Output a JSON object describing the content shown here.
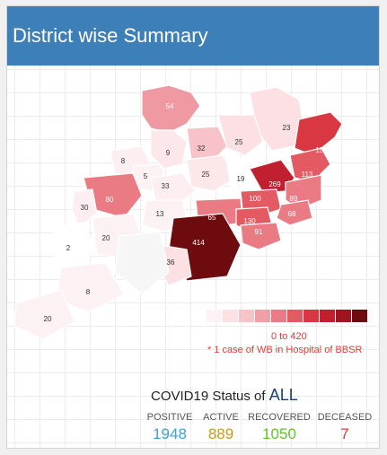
{
  "header": {
    "title": "District wise Summary"
  },
  "map": {
    "district_counts": [
      "54",
      "23",
      "152",
      "9",
      "32",
      "25",
      "8",
      "113",
      "5",
      "25",
      "19",
      "269",
      "33",
      "100",
      "89",
      "80",
      "30",
      "13",
      "65",
      "68",
      "130",
      "91",
      "414",
      "20",
      "36",
      "2",
      "8",
      "20"
    ]
  },
  "legend": {
    "colors": [
      "#fdf2f3",
      "#fbe1e4",
      "#f7c2c8",
      "#f19ea6",
      "#ea7b84",
      "#e45a62",
      "#d93842",
      "#c02030",
      "#a0141f",
      "#6d0b0e"
    ],
    "range": "0 to 420",
    "note": "* 1 case of WB in Hospital of BBSR"
  },
  "status": {
    "title_prefix": "COVID19 Status of",
    "scope": "ALL",
    "items": [
      {
        "label": "POSITIVE",
        "value": "1948",
        "color": "#3aa3d3"
      },
      {
        "label": "ACTIVE",
        "value": "889",
        "color": "#c69d1b"
      },
      {
        "label": "RECOVERED",
        "value": "1050",
        "color": "#5ec42f"
      },
      {
        "label": "DECEASED",
        "value": "7",
        "color": "#e53935"
      }
    ]
  }
}
